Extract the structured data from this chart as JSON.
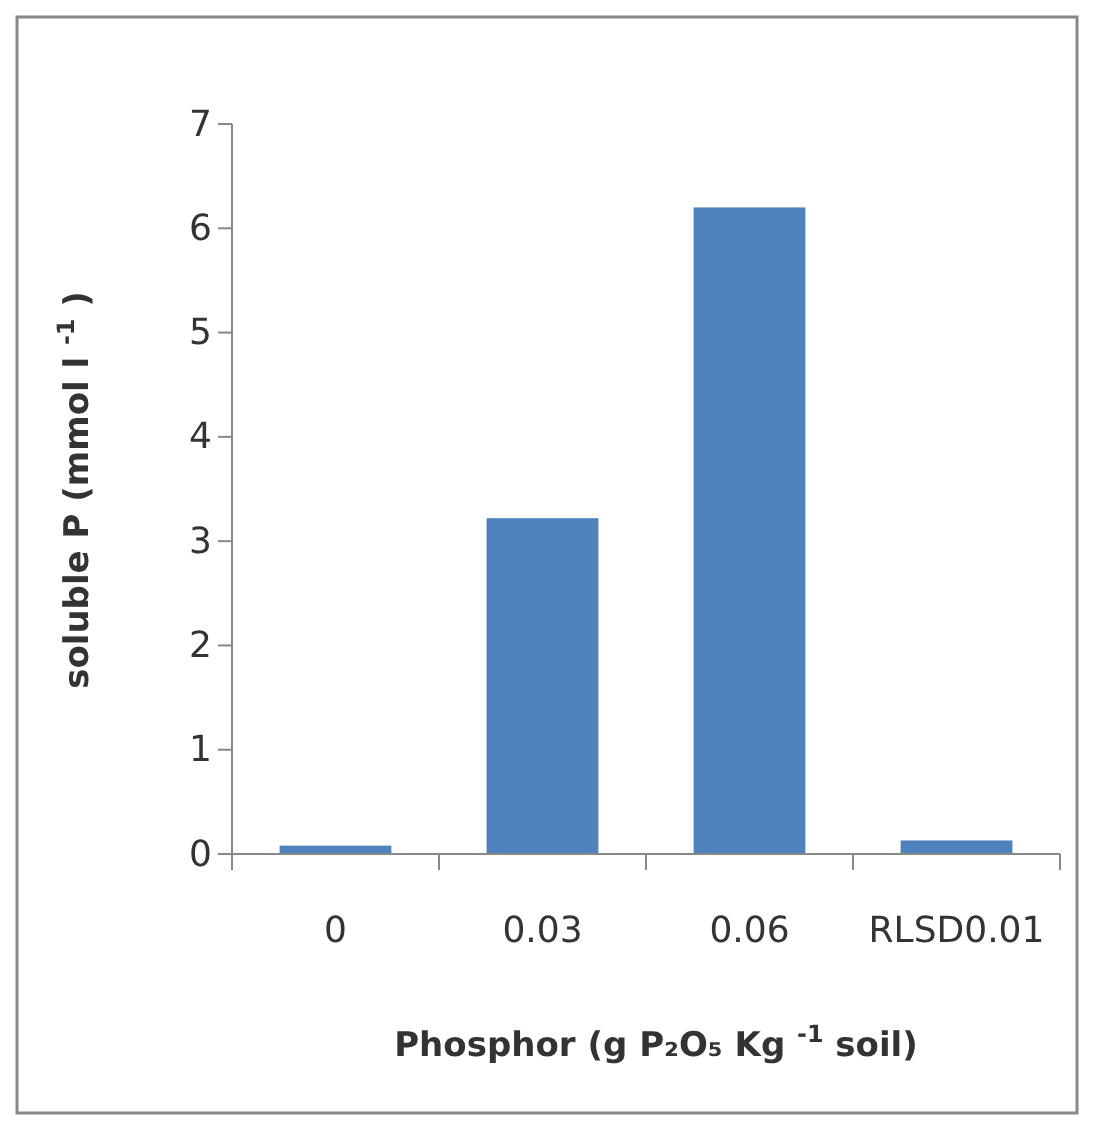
{
  "chart_data": {
    "type": "bar",
    "categories": [
      "0",
      "0.03",
      "0.06",
      "RLSD0.01"
    ],
    "values": [
      0.08,
      3.22,
      6.2,
      0.13
    ],
    "color": "#4f81bd",
    "ylim": [
      0,
      7
    ],
    "yticks": [
      0,
      1,
      2,
      3,
      4,
      5,
      6,
      7
    ],
    "grid": false,
    "xlabel": "Phosphor (g P₂O₅  Kg $^{-1}$ soil)",
    "ylabel": "soluble P (mmol l $^{-1}$ )"
  }
}
